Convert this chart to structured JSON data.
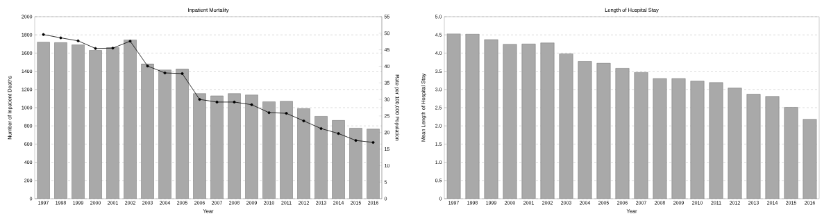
{
  "chart_data": [
    {
      "type": "bar",
      "title": "Inpatient Mortality",
      "xlabel": "Year",
      "ylabel": "Number of Inpatient Deaths",
      "y2label": "Rate per 100,000 Population",
      "categories": [
        "1997",
        "1998",
        "1999",
        "2000",
        "2001",
        "2002",
        "2003",
        "2004",
        "2005",
        "2006",
        "2007",
        "2008",
        "2009",
        "2010",
        "2011",
        "2012",
        "2013",
        "2014",
        "2015",
        "2016"
      ],
      "series": [
        {
          "type": "bar",
          "color": "#a9a9a9",
          "values": [
            1720,
            1715,
            1690,
            1630,
            1660,
            1745,
            1480,
            1415,
            1425,
            1155,
            1130,
            1155,
            1140,
            1065,
            1070,
            990,
            905,
            860,
            775,
            765
          ]
        },
        {
          "type": "line",
          "axis": "y2",
          "color": "#000000",
          "marker": "circle",
          "line_style": "solid",
          "values": [
            49.6,
            48.6,
            47.7,
            45.4,
            45.5,
            47.6,
            40.1,
            38.0,
            37.8,
            30.0,
            29.2,
            29.2,
            28.4,
            26.0,
            25.8,
            23.5,
            21.2,
            19.7,
            17.6,
            17.0
          ]
        }
      ],
      "ylim": [
        0,
        2000
      ],
      "yticks": [
        0,
        200,
        400,
        600,
        800,
        1000,
        1200,
        1400,
        1600,
        1800,
        2000
      ],
      "y2lim": [
        0,
        55
      ],
      "y2ticks": [
        0,
        5,
        10,
        15,
        20,
        25,
        30,
        35,
        40,
        45,
        50,
        55
      ],
      "grid": "y"
    },
    {
      "type": "bar",
      "title": "Length of Hospital Stay",
      "xlabel": "Year",
      "ylabel": "Mean Length of Hospital Stay",
      "categories": [
        "1997",
        "1998",
        "1999",
        "2000",
        "2001",
        "2002",
        "2003",
        "2004",
        "2005",
        "2006",
        "2007",
        "2008",
        "2009",
        "2010",
        "2011",
        "2012",
        "2013",
        "2014",
        "2015",
        "2016"
      ],
      "values": [
        4.53,
        4.52,
        4.37,
        4.24,
        4.25,
        4.28,
        3.98,
        3.77,
        3.72,
        3.58,
        3.47,
        3.3,
        3.3,
        3.23,
        3.19,
        3.04,
        2.87,
        2.81,
        2.51,
        2.18
      ],
      "color": "#a9a9a9",
      "ylim": [
        0,
        5
      ],
      "yticks": [
        0,
        {
          "value": 0.5,
          "label": "0.5"
        },
        {
          "value": 1,
          "label": "1.0"
        },
        {
          "value": 1.5,
          "label": "1.5"
        },
        {
          "value": 2,
          "label": "2.0"
        },
        {
          "value": 2.5,
          "label": "2.5"
        },
        {
          "value": 3,
          "label": "3.0"
        },
        {
          "value": 3.5,
          "label": "3.5"
        },
        {
          "value": 4,
          "label": "4.0"
        },
        {
          "value": 4.5,
          "label": "4.5"
        },
        {
          "value": 5,
          "label": "5.0"
        }
      ],
      "grid": "y"
    }
  ]
}
